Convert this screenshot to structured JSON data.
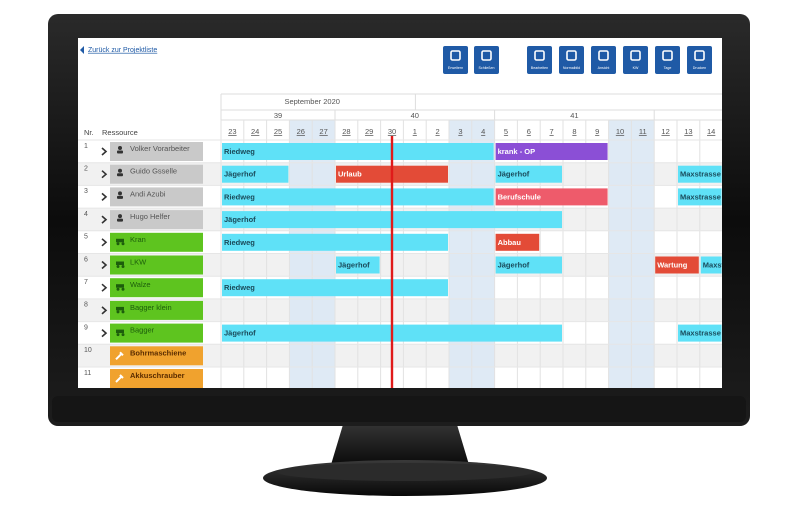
{
  "back_link": "Zurück zur Projektliste",
  "toolbar": [
    "Erweitern",
    "Schließen",
    "Bearbeiten",
    "Normalbild",
    "Ansicht",
    "KW",
    "Tage",
    "Drucken"
  ],
  "month": {
    "label": "September 2020",
    "from": "23",
    "to": "30"
  },
  "weeks": [
    {
      "label": "39",
      "from": "23",
      "to": "27"
    },
    {
      "label": "40",
      "from": "28",
      "to": "4"
    },
    {
      "label": "41",
      "from": "5",
      "to": "11"
    }
  ],
  "days": [
    "23",
    "24",
    "25",
    "26",
    "27",
    "28",
    "29",
    "30",
    "1",
    "2",
    "3",
    "4",
    "5",
    "6",
    "7",
    "8",
    "9",
    "10",
    "11",
    "12",
    "13",
    "14"
  ],
  "weekend": [
    "26",
    "27",
    "3",
    "4",
    "10",
    "11"
  ],
  "today": "30",
  "columns": {
    "nr": "Nr.",
    "resource": "Ressource"
  },
  "rows": [
    {
      "nr": "1",
      "name": "Volker Vorarbeiter",
      "kind": "person",
      "color": "#c9c9c9",
      "bookings": [
        {
          "label": "Riedweg",
          "from": "23",
          "to": "4",
          "color": "#5fe1f7"
        },
        {
          "label": "krank - OP",
          "from": "5",
          "to": "9",
          "color": "#8b4fd6"
        }
      ]
    },
    {
      "nr": "2",
      "name": "Guido Gsselle",
      "kind": "person",
      "color": "#c9c9c9",
      "bookings": [
        {
          "label": "Jägerhof",
          "from": "23",
          "to": "25",
          "color": "#5fe1f7"
        },
        {
          "label": "Urlaub",
          "from": "28",
          "to": "2",
          "color": "#e34b37"
        },
        {
          "label": "Jägerhof",
          "from": "5",
          "to": "7",
          "color": "#5fe1f7"
        },
        {
          "label": "Maxstrasse",
          "from": "13",
          "to": "14",
          "color": "#5fe1f7"
        }
      ]
    },
    {
      "nr": "3",
      "name": "Andi Azubi",
      "kind": "person",
      "color": "#c9c9c9",
      "bookings": [
        {
          "label": "Riedweg",
          "from": "23",
          "to": "4",
          "color": "#5fe1f7"
        },
        {
          "label": "Berufschule",
          "from": "5",
          "to": "9",
          "color": "#ee5b6b"
        },
        {
          "label": "Maxstrasse",
          "from": "13",
          "to": "14",
          "color": "#5fe1f7"
        }
      ]
    },
    {
      "nr": "4",
      "name": "Hugo Helfer",
      "kind": "person",
      "color": "#c9c9c9",
      "bookings": [
        {
          "label": "Jägerhof",
          "from": "23",
          "to": "7",
          "color": "#5fe1f7"
        }
      ]
    },
    {
      "nr": "5",
      "name": "Kran",
      "kind": "machine",
      "color": "#5ec41f",
      "bookings": [
        {
          "label": "Riedweg",
          "from": "23",
          "to": "2",
          "color": "#5fe1f7"
        },
        {
          "label": "Abbau",
          "from": "5",
          "to": "6",
          "color": "#e34b37"
        }
      ]
    },
    {
      "nr": "6",
      "name": "LKW",
      "kind": "machine",
      "color": "#5ec41f",
      "bookings": [
        {
          "label": "Jägerhof",
          "from": "28",
          "to": "29",
          "color": "#5fe1f7"
        },
        {
          "label": "Jägerhof",
          "from": "5",
          "to": "7",
          "color": "#5fe1f7"
        },
        {
          "label": "Wartung",
          "from": "12",
          "to": "13",
          "color": "#e34b37"
        },
        {
          "label": "Maxstrasse",
          "from": "14",
          "to": "14",
          "color": "#5fe1f7"
        }
      ]
    },
    {
      "nr": "7",
      "name": "Walze",
      "kind": "machine",
      "color": "#5ec41f",
      "bookings": [
        {
          "label": "Riedweg",
          "from": "23",
          "to": "2",
          "color": "#5fe1f7"
        }
      ]
    },
    {
      "nr": "8",
      "name": "Bagger klein",
      "kind": "machine",
      "color": "#5ec41f",
      "bookings": []
    },
    {
      "nr": "9",
      "name": "Bagger",
      "kind": "machine",
      "color": "#5ec41f",
      "bookings": [
        {
          "label": "Jägerhof",
          "from": "23",
          "to": "7",
          "color": "#5fe1f7"
        },
        {
          "label": "Maxstrasse",
          "from": "13",
          "to": "14",
          "color": "#5fe1f7"
        }
      ]
    },
    {
      "nr": "10",
      "name": "Bohrmaschiene",
      "kind": "tool",
      "color": "#f0a22e",
      "bookings": []
    },
    {
      "nr": "11",
      "name": "Akkuschrauber",
      "kind": "tool",
      "color": "#f0a22e",
      "bookings": []
    }
  ]
}
